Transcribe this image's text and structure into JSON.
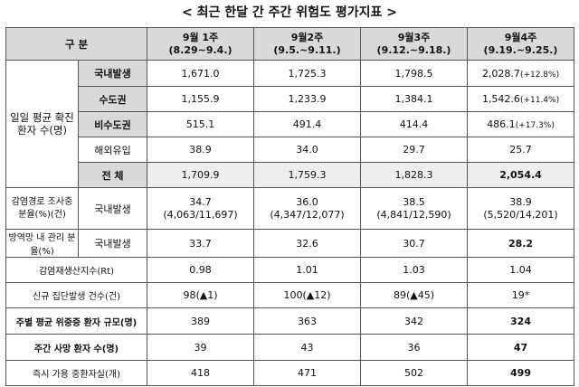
{
  "title": "< 최근 한달 간 주간 위험도 평가지표 >",
  "header": {
    "category": "구 분",
    "weeks": [
      {
        "name": "9월 1주",
        "range": "(8.29~9.4.)"
      },
      {
        "name": "9월2주",
        "range": "(9.5.~9.11.)"
      },
      {
        "name": "9월3주",
        "range": "(9.12.~9.18.)"
      },
      {
        "name": "9월4주",
        "range": "(9.19.~9.25.)"
      }
    ]
  },
  "rows": {
    "daily_avg_label": "일일 평균 확진환자 수(명)",
    "domestic": {
      "label": "국내발생",
      "values": [
        "1,671.0",
        "1,725.3",
        "1,798.5",
        "2,028.7"
      ],
      "note": "(+12.8%)"
    },
    "capital": {
      "label": "수도권",
      "values": [
        "1,155.9",
        "1,233.9",
        "1,384.1",
        "1,542.6"
      ],
      "note": "(+11.4%)"
    },
    "non_capital": {
      "label": "비수도권",
      "values": [
        "515.1",
        "491.4",
        "414.4",
        "486.1"
      ],
      "note": "(+17.3%)"
    },
    "overseas": {
      "label": "해외유입",
      "values": [
        "38.9",
        "34.0",
        "29.7",
        "25.7"
      ]
    },
    "total": {
      "label": "전 체",
      "values": [
        "1,709.9",
        "1,759.3",
        "1,828.3",
        "2,054.4"
      ]
    },
    "investigating": {
      "label": "감염경로 조사중 분율(%)(건)",
      "sub": "국내발생",
      "values": [
        "34.7",
        "36.0",
        "38.5",
        "38.9"
      ],
      "details": [
        "(4,063/11,697)",
        "(4,347/12,077)",
        "(4,841/12,590)",
        "(5,520/14,201)"
      ]
    },
    "managed": {
      "label": "방역망 내 관리 분율(%)",
      "sub": "국내발생",
      "values": [
        "33.7",
        "32.6",
        "30.7",
        "28.2"
      ]
    },
    "rt": {
      "label": "감염재생산지수(Rt)",
      "values": [
        "0.98",
        "1.01",
        "1.03",
        "1.04"
      ]
    },
    "clusters": {
      "label": "신규 집단발생 건수(건)",
      "values": [
        "98(▲1)",
        "100(▲12)",
        "89(▲45)",
        "19*"
      ]
    },
    "severe": {
      "label": "주별 평균 위중증 환자 규모(명)",
      "values": [
        "389",
        "363",
        "342",
        "324"
      ]
    },
    "deaths": {
      "label": "주간 사망 환자 수(명)",
      "values": [
        "39",
        "43",
        "36",
        "47"
      ]
    },
    "beds": {
      "label": "즉시 가용 중환자실(개)",
      "values": [
        "418",
        "471",
        "502",
        "499"
      ]
    }
  }
}
